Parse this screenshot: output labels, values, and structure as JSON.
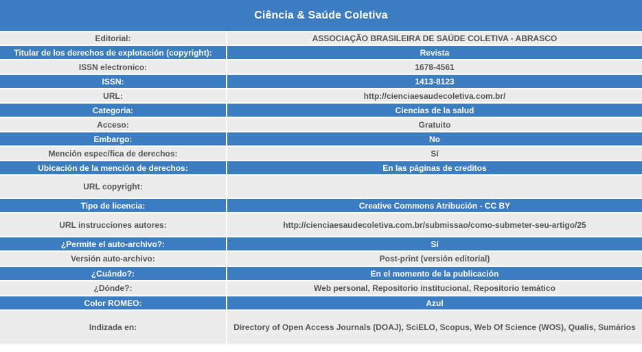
{
  "title": "Ciência & Saúde Coletiva",
  "colors": {
    "header_blue": "#3b7dc0",
    "row_light": "#ececec",
    "text_gray": "#555555"
  },
  "rows": [
    {
      "label": "Editorial:",
      "value": "ASSOCIAÇÃO BRASILEIRA DE SAÚDE COLETIVA - ABRASCO",
      "style": "light"
    },
    {
      "label": "Titular de los derechos de explotación (copyright):",
      "value": "Revista",
      "style": "blue"
    },
    {
      "label": "ISSN electronico:",
      "value": "1678-4561",
      "style": "light"
    },
    {
      "label": "ISSN:",
      "value": "1413-8123",
      "style": "blue"
    },
    {
      "label": "URL:",
      "value": "http://cienciaesaudecoletiva.com.br/",
      "style": "light"
    },
    {
      "label": "Categoria:",
      "value": "Ciencias de la salud",
      "style": "blue"
    },
    {
      "label": "Acceso:",
      "value": "Gratuito",
      "style": "light"
    },
    {
      "label": "Embargo:",
      "value": "No",
      "style": "blue"
    },
    {
      "label": "Mención específica de derechos:",
      "value": "Sí",
      "style": "light"
    },
    {
      "label": "Ubicación de la mención de derechos:",
      "value": "En las páginas de creditos",
      "style": "blue"
    },
    {
      "label": "URL copyright:",
      "value": "",
      "style": "light"
    },
    {
      "label": "Tipo de licencia:",
      "value": "Creative Commons Atribución - CC BY",
      "style": "blue"
    },
    {
      "label": "URL instrucciones autores:",
      "value": "http://cienciaesaudecoletiva.com.br/submissao/como-submeter-seu-artigo/25",
      "style": "light"
    },
    {
      "label": "¿Permite el auto-archivo?:",
      "value": "Sí",
      "style": "blue"
    },
    {
      "label": "Versión auto-archivo:",
      "value": "Post-print (versión editorial)",
      "style": "light"
    },
    {
      "label": "¿Cuándo?:",
      "value": "En el momento de la publicación",
      "style": "blue"
    },
    {
      "label": "¿Dónde?:",
      "value": "Web personal, Repositorio institucional, Repositorio temático",
      "style": "light"
    },
    {
      "label": "Color ROMEO:",
      "value": "Azul",
      "style": "blue"
    },
    {
      "label": "Indizada en:",
      "value": "Directory of Open Access Journals (DOAJ), SciELO, Scopus, Web Of Science (WOS), Qualis, Sumários",
      "style": "light"
    }
  ]
}
